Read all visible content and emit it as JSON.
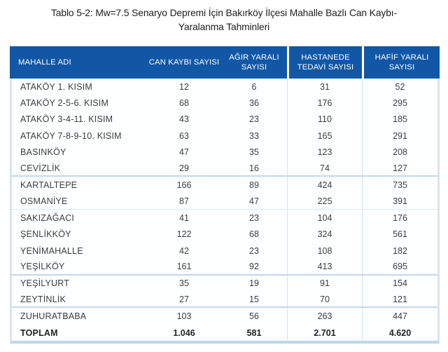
{
  "title": {
    "line1": "Tablo 5-2: Mw=7.5 Senaryo Depremi İçin Bakırköy İlçesi Mahalle Bazlı Can Kaybı-",
    "line2": "Yaralanma Tahminleri"
  },
  "colors": {
    "header_bg": "#1157a5",
    "header_text": "#ffffff",
    "body_text": "#3d3d3d",
    "grid_line": "#d3e3f2",
    "separator_strong": "#c3d8ea",
    "separator_faint": "#dde9f4",
    "outer_border": "#d6e5f3",
    "bottom_band": "#bdd6ea"
  },
  "table": {
    "columns": [
      "MAHALLE ADI",
      "CAN KAYBI SAYISI",
      "AĞIR YARALI SAYISI",
      "HASTANEDE TEDAVİ SAYISI",
      "HAFİF YARALI SAYISI"
    ],
    "rows": [
      {
        "name": "ATAKÖY 1. KISIM",
        "values": [
          "12",
          "6",
          "31",
          "52"
        ],
        "sep": "none"
      },
      {
        "name": "ATAKÖY 2-5-6. KISIM",
        "values": [
          "68",
          "36",
          "176",
          "295"
        ],
        "sep": "none"
      },
      {
        "name": "ATAKÖY 3-4-11. KISIM",
        "values": [
          "43",
          "23",
          "110",
          "185"
        ],
        "sep": "none"
      },
      {
        "name": "ATAKÖY 7-8-9-10. KISIM",
        "values": [
          "63",
          "33",
          "165",
          "291"
        ],
        "sep": "none"
      },
      {
        "name": "BASINKÖY",
        "values": [
          "47",
          "35",
          "123",
          "208"
        ],
        "sep": "none"
      },
      {
        "name": "CEVİZLİK",
        "values": [
          "29",
          "16",
          "74",
          "127"
        ],
        "sep": "strong"
      },
      {
        "name": "KARTALTEPE",
        "values": [
          "166",
          "89",
          "424",
          "735"
        ],
        "sep": "none"
      },
      {
        "name": "OSMANİYE",
        "values": [
          "87",
          "47",
          "225",
          "391"
        ],
        "sep": "faint"
      },
      {
        "name": "SAKIZAĞACI",
        "values": [
          "41",
          "23",
          "104",
          "176"
        ],
        "sep": "none"
      },
      {
        "name": "ŞENLİKKÖY",
        "values": [
          "122",
          "68",
          "324",
          "561"
        ],
        "sep": "none"
      },
      {
        "name": "YENİMAHALLE",
        "values": [
          "42",
          "23",
          "108",
          "182"
        ],
        "sep": "none"
      },
      {
        "name": "YEŞİLKÖY",
        "values": [
          "161",
          "92",
          "413",
          "695"
        ],
        "sep": "strong"
      },
      {
        "name": "YEŞİLYURT",
        "values": [
          "35",
          "19",
          "91",
          "154"
        ],
        "sep": "none"
      },
      {
        "name": "ZEYTİNLİK",
        "values": [
          "27",
          "15",
          "70",
          "121"
        ],
        "sep": "strong"
      },
      {
        "name": "ZUHURATBABA",
        "values": [
          "103",
          "56",
          "263",
          "447"
        ],
        "sep": "none"
      }
    ],
    "total": {
      "name": "TOPLAM",
      "values": [
        "1.046",
        "581",
        "2.701",
        "4.620"
      ]
    }
  }
}
